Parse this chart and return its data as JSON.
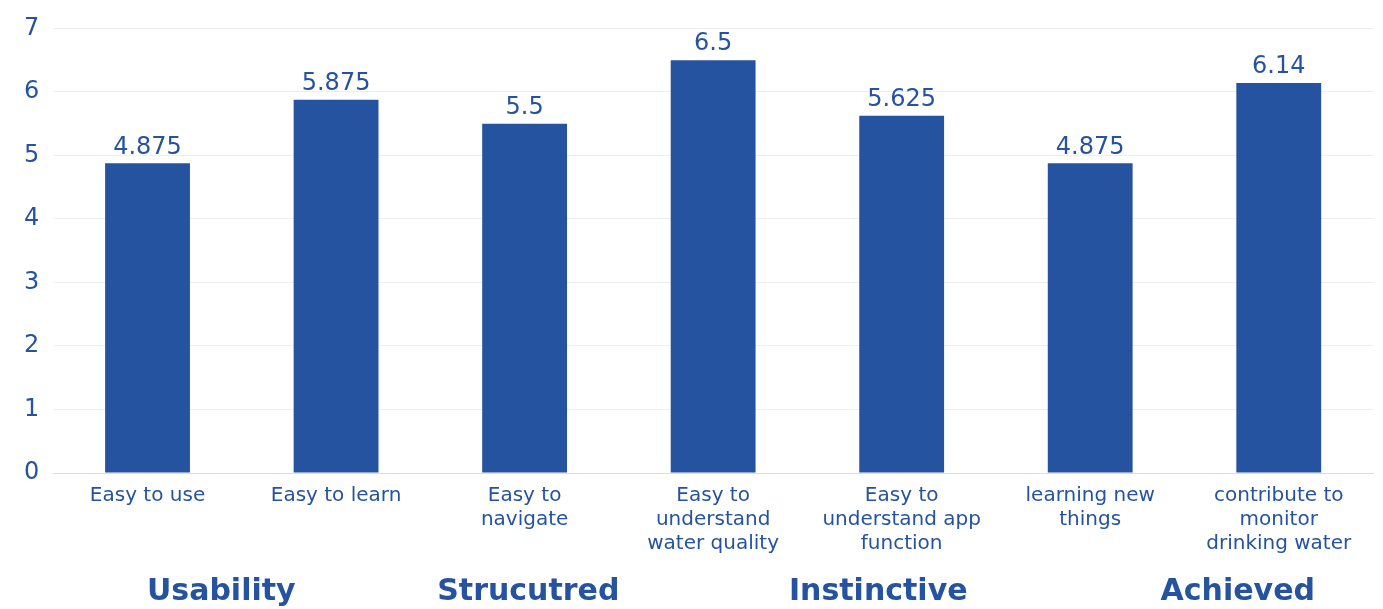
{
  "chart_data": {
    "type": "bar",
    "categories": [
      "Easy to use",
      "Easy to learn",
      "Easy to navigate",
      "Easy to understand water quality",
      "Easy to understand app function",
      "learning new things",
      "contribute to monitor drinking water"
    ],
    "values": [
      4.875,
      5.875,
      5.5,
      6.5,
      5.625,
      4.875,
      6.14
    ],
    "color": "#2553a0",
    "ylim": [
      0,
      7
    ],
    "yticks": [
      0,
      1,
      2,
      3,
      4,
      5,
      6,
      7
    ],
    "grid": "y",
    "legend": false,
    "data_labels": true,
    "annotations": [
      "Usability",
      "Strucutred",
      "Instinctive",
      "Achieved"
    ]
  }
}
